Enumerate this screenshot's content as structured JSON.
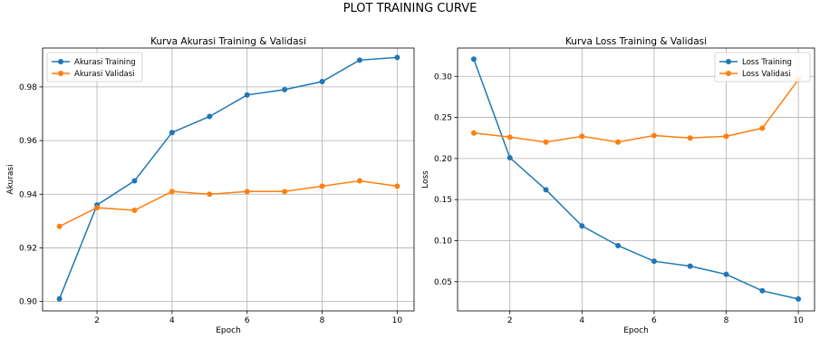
{
  "figure": {
    "title": "PLOT TRAINING CURVE"
  },
  "chart_data": [
    {
      "type": "line",
      "title": "Kurva Akurasi Training & Validasi",
      "xlabel": "Epoch",
      "ylabel": "Akurasi",
      "x": [
        1,
        2,
        3,
        4,
        5,
        6,
        7,
        8,
        9,
        10
      ],
      "xticks": [
        2,
        4,
        6,
        8,
        10
      ],
      "xtick_labels": [
        "2",
        "4",
        "6",
        "8",
        "10"
      ],
      "yticks": [
        0.9,
        0.92,
        0.94,
        0.96,
        0.98
      ],
      "ytick_labels": [
        "0.90",
        "0.92",
        "0.94",
        "0.96",
        "0.98"
      ],
      "xlim": [
        0.55,
        10.45
      ],
      "ylim": [
        0.8965,
        0.9945
      ],
      "grid": true,
      "legend": "top-left",
      "series": [
        {
          "name": "Akurasi Training",
          "color": "#1f77b4",
          "values": [
            0.901,
            0.936,
            0.945,
            0.963,
            0.969,
            0.977,
            0.979,
            0.982,
            0.99,
            0.991
          ]
        },
        {
          "name": "Akurasi Validasi",
          "color": "#ff7f0e",
          "values": [
            0.928,
            0.935,
            0.934,
            0.941,
            0.94,
            0.941,
            0.941,
            0.943,
            0.945,
            0.943
          ]
        }
      ]
    },
    {
      "type": "line",
      "title": "Kurva Loss Training & Validasi",
      "xlabel": "Epoch",
      "ylabel": "Loss",
      "x": [
        1,
        2,
        3,
        4,
        5,
        6,
        7,
        8,
        9,
        10
      ],
      "xticks": [
        2,
        4,
        6,
        8,
        10
      ],
      "xtick_labels": [
        "2",
        "4",
        "6",
        "8",
        "10"
      ],
      "yticks": [
        0.05,
        0.1,
        0.15,
        0.2,
        0.25,
        0.3
      ],
      "ytick_labels": [
        "0.05",
        "0.10",
        "0.15",
        "0.20",
        "0.25",
        "0.30"
      ],
      "xlim": [
        0.55,
        10.45
      ],
      "ylim": [
        0.0145,
        0.3345
      ],
      "grid": true,
      "legend": "top-right",
      "series": [
        {
          "name": "Loss Training",
          "color": "#1f77b4",
          "values": [
            0.321,
            0.201,
            0.162,
            0.118,
            0.094,
            0.075,
            0.069,
            0.059,
            0.039,
            0.029
          ]
        },
        {
          "name": "Loss Validasi",
          "color": "#ff7f0e",
          "values": [
            0.231,
            0.226,
            0.22,
            0.227,
            0.22,
            0.228,
            0.225,
            0.227,
            0.237,
            0.296
          ]
        }
      ]
    }
  ]
}
